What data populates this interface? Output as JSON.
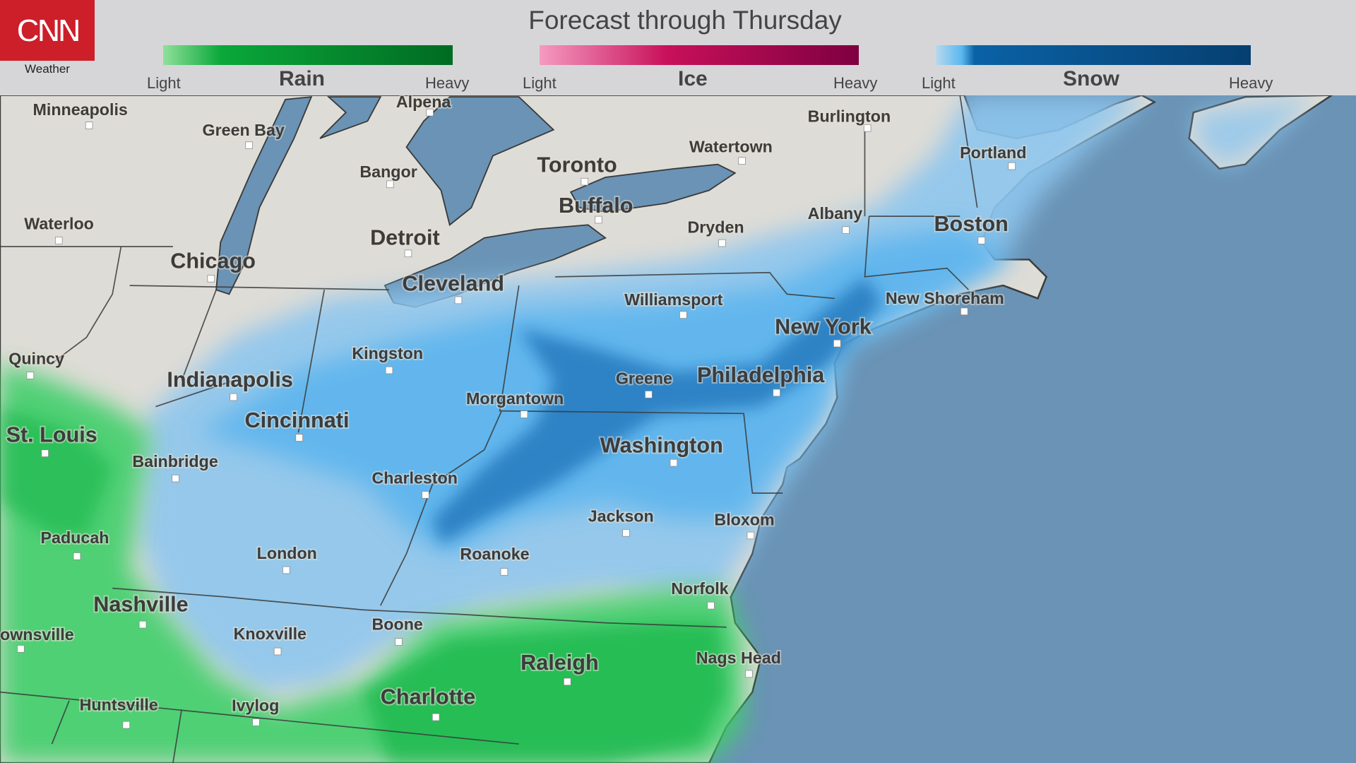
{
  "brand": {
    "logo_text": "CNN",
    "subtitle": "Weather",
    "color": "#cc1f2a"
  },
  "title": "Forecast through Thursday",
  "legend": [
    {
      "name": "Rain",
      "light": "Light",
      "heavy": "Heavy",
      "colors": [
        "#8fe09a",
        "#0aa83a",
        "#006b22"
      ]
    },
    {
      "name": "Ice",
      "light": "Light",
      "heavy": "Heavy",
      "colors": [
        "#f59ac0",
        "#c8105a",
        "#7e0040"
      ]
    },
    {
      "name": "Snow",
      "light": "Light",
      "heavy": "Heavy",
      "colors": [
        "#b9d8ee",
        "#5ab8f0",
        "#0a62a6",
        "#063f70"
      ]
    }
  ],
  "map_colors": {
    "ocean": "#6a93b5",
    "land": "#dedcd6",
    "lakes": "#6a93b5"
  },
  "cities": [
    {
      "name": "Minneapolis",
      "tier": "minor"
    },
    {
      "name": "Green Bay",
      "tier": "minor"
    },
    {
      "name": "Alpena",
      "tier": "minor"
    },
    {
      "name": "Burlington",
      "tier": "minor"
    },
    {
      "name": "Portland",
      "tier": "minor"
    },
    {
      "name": "Waterloo",
      "tier": "minor"
    },
    {
      "name": "Bangor",
      "tier": "minor"
    },
    {
      "name": "Toronto",
      "tier": "major"
    },
    {
      "name": "Watertown",
      "tier": "minor"
    },
    {
      "name": "Buffalo",
      "tier": "major"
    },
    {
      "name": "Albany",
      "tier": "minor"
    },
    {
      "name": "Boston",
      "tier": "major"
    },
    {
      "name": "Detroit",
      "tier": "major"
    },
    {
      "name": "Dryden",
      "tier": "minor"
    },
    {
      "name": "Chicago",
      "tier": "major"
    },
    {
      "name": "Cleveland",
      "tier": "major"
    },
    {
      "name": "Williamsport",
      "tier": "minor"
    },
    {
      "name": "New Shoreham",
      "tier": "minor"
    },
    {
      "name": "New York",
      "tier": "major"
    },
    {
      "name": "Quincy",
      "tier": "minor"
    },
    {
      "name": "Kingston",
      "tier": "minor"
    },
    {
      "name": "Indianapolis",
      "tier": "major"
    },
    {
      "name": "Greene",
      "tier": "minor"
    },
    {
      "name": "Philadelphia",
      "tier": "major"
    },
    {
      "name": "Morgantown",
      "tier": "minor"
    },
    {
      "name": "Cincinnati",
      "tier": "major"
    },
    {
      "name": "St. Louis",
      "tier": "major"
    },
    {
      "name": "Washington",
      "tier": "major"
    },
    {
      "name": "Bainbridge",
      "tier": "minor"
    },
    {
      "name": "Charleston",
      "tier": "minor"
    },
    {
      "name": "Jackson",
      "tier": "minor"
    },
    {
      "name": "Bloxom",
      "tier": "minor"
    },
    {
      "name": "Paducah",
      "tier": "minor"
    },
    {
      "name": "London",
      "tier": "minor"
    },
    {
      "name": "Roanoke",
      "tier": "minor"
    },
    {
      "name": "Norfolk",
      "tier": "minor"
    },
    {
      "name": "Nashville",
      "tier": "major"
    },
    {
      "name": "Boone",
      "tier": "minor"
    },
    {
      "name": "Knoxville",
      "tier": "minor"
    },
    {
      "name": "ownsville",
      "tier": "minor"
    },
    {
      "name": "Raleigh",
      "tier": "major"
    },
    {
      "name": "Nags Head",
      "tier": "minor"
    },
    {
      "name": "Charlotte",
      "tier": "major"
    },
    {
      "name": "Huntsville",
      "tier": "minor"
    },
    {
      "name": "Ivylog",
      "tier": "minor"
    }
  ]
}
